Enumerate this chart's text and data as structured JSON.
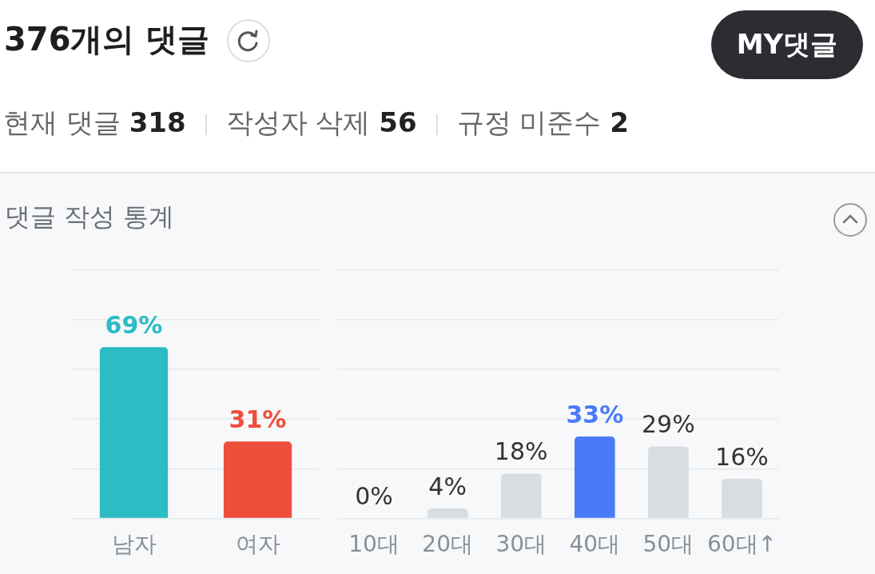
{
  "chart_data": [
    {
      "type": "other",
      "title": "376개의 댓글",
      "annotations": [
        "현재 댓글 318",
        "작성자 삭제 56",
        "규정 미준수 2",
        "MY댓글",
        "댓글 작성 통계"
      ]
    },
    {
      "type": "bar",
      "categories": [
        "남자",
        "여자"
      ],
      "values": [
        69,
        31
      ],
      "colors": [
        "#2bbcc4",
        "#ef4e3c"
      ],
      "value_labels": [
        "69%",
        "31%"
      ],
      "ylim": [
        0,
        100
      ],
      "grid": "y",
      "tick_labels": "x"
    },
    {
      "type": "bar",
      "categories": [
        "10대",
        "20대",
        "30대",
        "40대",
        "50대",
        "60대↑"
      ],
      "values": [
        0,
        4,
        18,
        33,
        29,
        16
      ],
      "colors": [
        "#d9dde1",
        "#d9dde1",
        "#d9dde1",
        "#4a7bf7",
        "#d9dde1",
        "#d9dde1"
      ],
      "value_labels": [
        "0%",
        "4%",
        "18%",
        "33%",
        "29%",
        "16%"
      ],
      "ylim": [
        0,
        100
      ],
      "grid": "y",
      "tick_labels": "x"
    }
  ]
}
